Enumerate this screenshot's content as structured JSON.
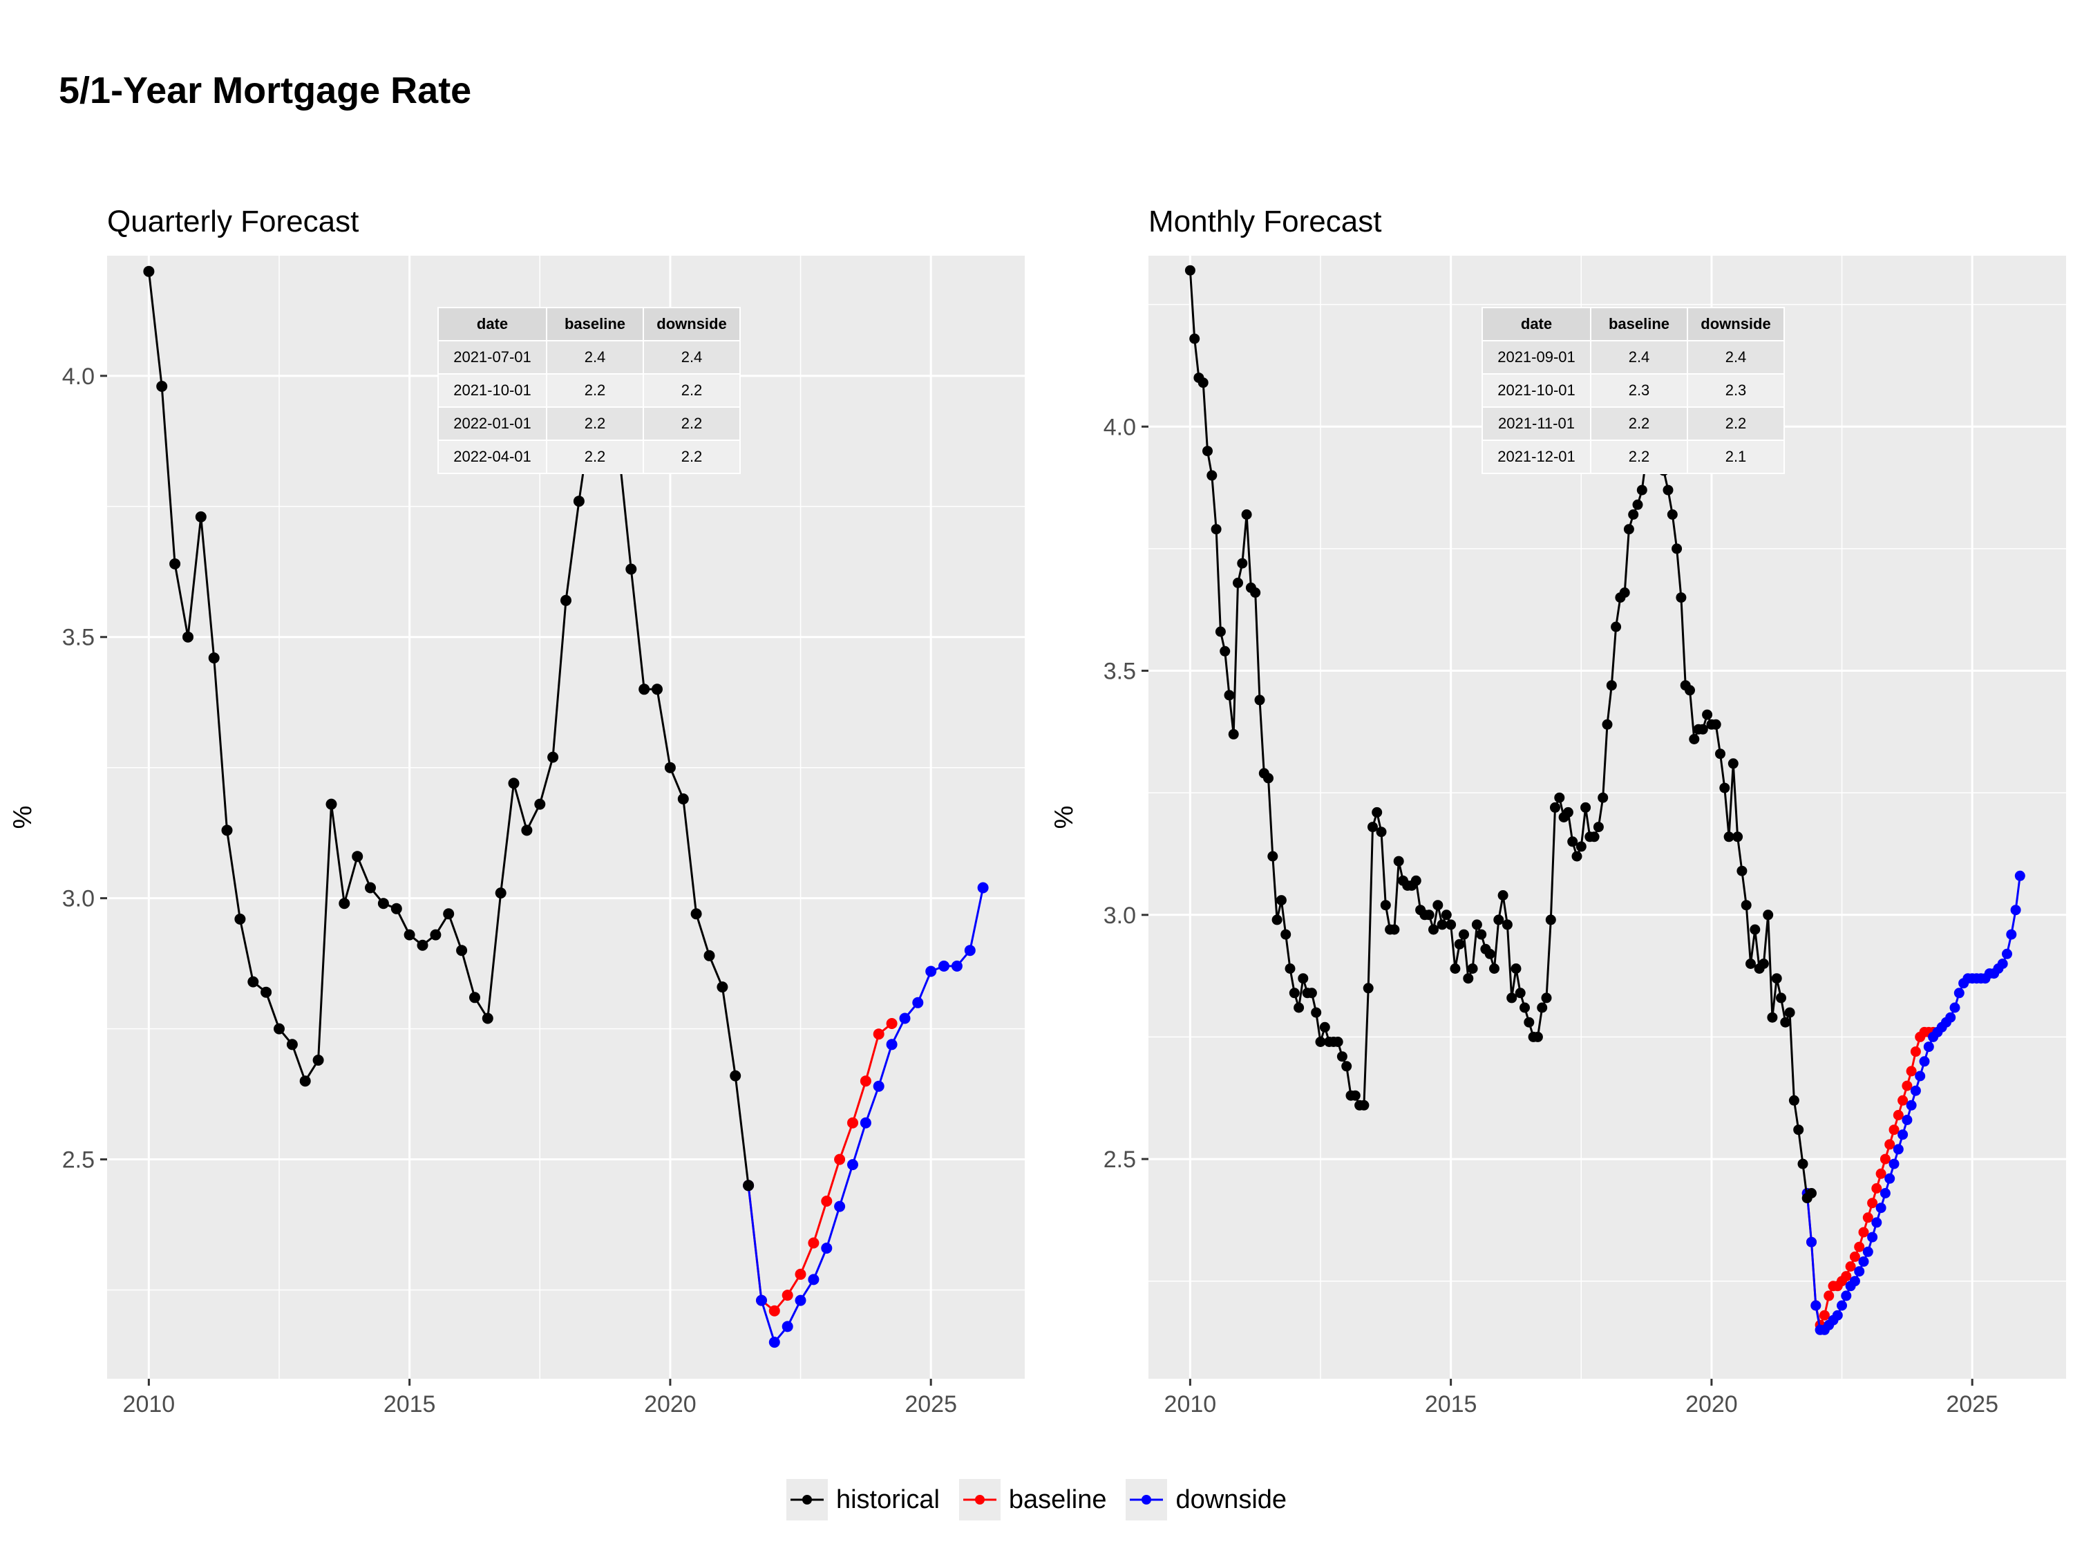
{
  "title": "5/1-Year Mortgage Rate",
  "legend": [
    {
      "label": "historical",
      "color": "#000000"
    },
    {
      "label": "baseline",
      "color": "#ff0000"
    },
    {
      "label": "downside",
      "color": "#0000ff"
    }
  ],
  "chart_data": [
    {
      "type": "line",
      "title": "Quarterly Forecast",
      "xlabel": "",
      "ylabel": "%",
      "xlim": [
        2009.2,
        2026.8
      ],
      "ylim": [
        2.08,
        4.23
      ],
      "xticks": [
        2010,
        2015,
        2020,
        2025
      ],
      "yticks": [
        2.5,
        3.0,
        3.5,
        4.0
      ],
      "grid": true,
      "table": {
        "headers": [
          "date",
          "baseline",
          "downside"
        ],
        "rows": [
          [
            "2021-07-01",
            "2.4",
            "2.4"
          ],
          [
            "2021-10-01",
            "2.2",
            "2.2"
          ],
          [
            "2022-01-01",
            "2.2",
            "2.2"
          ],
          [
            "2022-04-01",
            "2.2",
            "2.2"
          ]
        ]
      },
      "series": [
        {
          "name": "historical",
          "color": "#000000",
          "x": [
            2010.0,
            2010.25,
            2010.5,
            2010.75,
            2011.0,
            2011.25,
            2011.5,
            2011.75,
            2012.0,
            2012.25,
            2012.5,
            2012.75,
            2013.0,
            2013.25,
            2013.5,
            2013.75,
            2014.0,
            2014.25,
            2014.5,
            2014.75,
            2015.0,
            2015.25,
            2015.5,
            2015.75,
            2016.0,
            2016.25,
            2016.5,
            2016.75,
            2017.0,
            2017.25,
            2017.5,
            2017.75,
            2018.0,
            2018.25,
            2018.5,
            2018.75,
            2019.0,
            2019.25,
            2019.5,
            2019.75,
            2020.0,
            2020.25,
            2020.5,
            2020.75,
            2021.0,
            2021.25,
            2021.5
          ],
          "y": [
            4.2,
            3.98,
            3.64,
            3.5,
            3.73,
            3.46,
            3.13,
            2.96,
            2.84,
            2.82,
            2.75,
            2.72,
            2.65,
            2.69,
            3.18,
            2.99,
            3.08,
            3.02,
            2.99,
            2.98,
            2.93,
            2.91,
            2.93,
            2.97,
            2.9,
            2.81,
            2.77,
            3.01,
            3.22,
            3.13,
            3.18,
            3.27,
            3.57,
            3.76,
            3.93,
            4.0,
            3.87,
            3.63,
            3.4,
            3.4,
            3.25,
            3.19,
            2.97,
            2.89,
            2.83,
            2.66,
            2.45
          ]
        },
        {
          "name": "baseline",
          "color": "#ff0000",
          "x": [
            2021.5,
            2021.75,
            2022.0,
            2022.25,
            2022.5,
            2022.75,
            2023.0,
            2023.25,
            2023.5,
            2023.75,
            2024.0,
            2024.25
          ],
          "y": [
            2.45,
            2.23,
            2.21,
            2.24,
            2.28,
            2.34,
            2.42,
            2.5,
            2.57,
            2.65,
            2.74,
            2.76
          ]
        },
        {
          "name": "downside",
          "color": "#0000ff",
          "x": [
            2021.5,
            2021.75,
            2022.0,
            2022.25,
            2022.5,
            2022.75,
            2023.0,
            2023.25,
            2023.5,
            2023.75,
            2024.0,
            2024.25,
            2024.5,
            2024.75,
            2025.0,
            2025.25,
            2025.5,
            2025.75,
            2026.0
          ],
          "y": [
            2.45,
            2.23,
            2.15,
            2.18,
            2.23,
            2.27,
            2.33,
            2.41,
            2.49,
            2.57,
            2.64,
            2.72,
            2.77,
            2.8,
            2.86,
            2.87,
            2.87,
            2.9,
            3.02
          ]
        }
      ]
    },
    {
      "type": "line",
      "title": "Monthly Forecast",
      "xlabel": "",
      "ylabel": "%",
      "xlim": [
        2009.2,
        2026.8
      ],
      "ylim": [
        2.05,
        4.35
      ],
      "xticks": [
        2010,
        2015,
        2020,
        2025
      ],
      "yticks": [
        2.5,
        3.0,
        3.5,
        4.0
      ],
      "grid": true,
      "table": {
        "headers": [
          "date",
          "baseline",
          "downside"
        ],
        "rows": [
          [
            "2021-09-01",
            "2.4",
            "2.4"
          ],
          [
            "2021-10-01",
            "2.3",
            "2.3"
          ],
          [
            "2021-11-01",
            "2.2",
            "2.2"
          ],
          [
            "2021-12-01",
            "2.2",
            "2.1"
          ]
        ]
      },
      "historical": {
        "name": "historical",
        "color": "#000000",
        "start": 2010.0,
        "step": 0.0833333,
        "values": [
          4.32,
          4.18,
          4.1,
          4.09,
          3.95,
          3.9,
          3.79,
          3.58,
          3.54,
          3.45,
          3.37,
          3.68,
          3.72,
          3.82,
          3.67,
          3.66,
          3.44,
          3.29,
          3.28,
          3.12,
          2.99,
          3.03,
          2.96,
          2.89,
          2.84,
          2.81,
          2.87,
          2.84,
          2.84,
          2.8,
          2.74,
          2.77,
          2.74,
          2.74,
          2.74,
          2.71,
          2.69,
          2.63,
          2.63,
          2.61,
          2.61,
          2.85,
          3.18,
          3.21,
          3.17,
          3.02,
          2.97,
          2.97,
          3.11,
          3.07,
          3.06,
          3.06,
          3.07,
          3.01,
          3.0,
          3.0,
          2.97,
          3.02,
          2.98,
          3.0,
          2.98,
          2.89,
          2.94,
          2.96,
          2.87,
          2.89,
          2.98,
          2.96,
          2.93,
          2.92,
          2.89,
          2.99,
          3.04,
          2.98,
          2.83,
          2.89,
          2.84,
          2.81,
          2.78,
          2.75,
          2.75,
          2.81,
          2.83,
          2.99,
          3.22,
          3.24,
          3.2,
          3.21,
          3.15,
          3.12,
          3.14,
          3.22,
          3.16,
          3.16,
          3.18,
          3.24,
          3.39,
          3.47,
          3.59,
          3.65,
          3.66,
          3.79,
          3.82,
          3.84,
          3.87,
          3.94,
          4.02,
          4.05,
          3.98,
          3.91,
          3.87,
          3.82,
          3.75,
          3.65,
          3.47,
          3.46,
          3.36,
          3.38,
          3.38,
          3.41,
          3.39,
          3.39,
          3.33,
          3.26,
          3.16,
          3.31,
          3.16,
          3.09,
          3.02,
          2.9,
          2.97,
          2.89,
          2.9,
          3.0,
          2.79,
          2.87,
          2.83,
          2.78,
          2.8,
          2.62,
          2.56,
          2.49,
          2.42,
          2.43
        ]
      },
      "series": [
        {
          "name": "baseline",
          "color": "#ff0000",
          "start": 2021.8333,
          "step": 0.0833333,
          "values": [
            2.43,
            2.33,
            2.2,
            2.16,
            2.18,
            2.22,
            2.24,
            2.24,
            2.25,
            2.26,
            2.28,
            2.3,
            2.32,
            2.35,
            2.38,
            2.41,
            2.44,
            2.47,
            2.5,
            2.53,
            2.56,
            2.59,
            2.62,
            2.65,
            2.68,
            2.72,
            2.75,
            2.76,
            2.76,
            2.76
          ]
        },
        {
          "name": "downside",
          "color": "#0000ff",
          "start": 2021.8333,
          "step": 0.0833333,
          "values": [
            2.43,
            2.33,
            2.2,
            2.15,
            2.15,
            2.16,
            2.17,
            2.18,
            2.2,
            2.22,
            2.24,
            2.25,
            2.27,
            2.29,
            2.31,
            2.34,
            2.37,
            2.4,
            2.43,
            2.46,
            2.49,
            2.52,
            2.55,
            2.58,
            2.61,
            2.64,
            2.67,
            2.7,
            2.73,
            2.75,
            2.76,
            2.77,
            2.78,
            2.79,
            2.81,
            2.84,
            2.86,
            2.87,
            2.87,
            2.87,
            2.87,
            2.87,
            2.88,
            2.88,
            2.89,
            2.9,
            2.92,
            2.96,
            3.01,
            3.08
          ]
        }
      ]
    }
  ]
}
